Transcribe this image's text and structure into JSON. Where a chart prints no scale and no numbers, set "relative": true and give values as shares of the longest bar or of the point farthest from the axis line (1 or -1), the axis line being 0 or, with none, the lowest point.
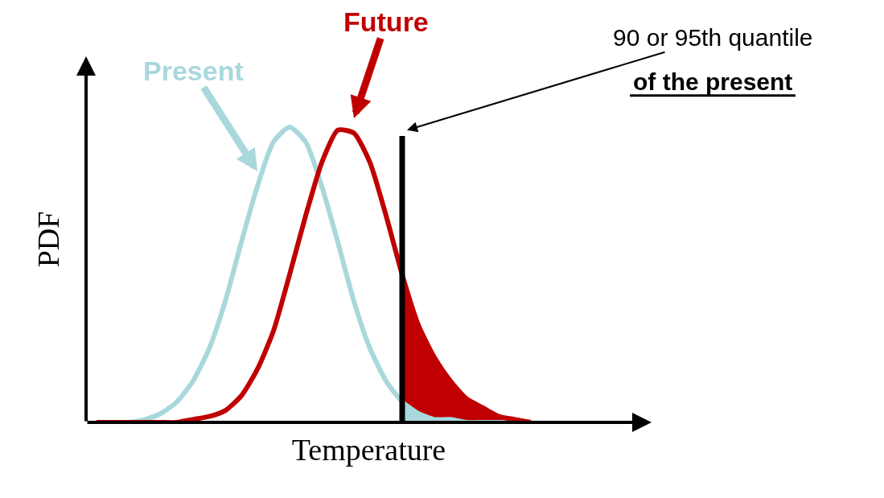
{
  "chart_data": {
    "type": "line",
    "relative": true,
    "xlabel": "Temperature",
    "ylabel": "PDF",
    "legend": false,
    "categories": [
      null,
      null,
      null,
      null,
      null,
      null,
      null,
      null,
      null,
      null,
      null,
      null,
      null,
      null,
      null,
      null,
      null,
      null,
      null,
      null,
      null,
      null,
      null,
      null,
      null,
      null,
      null,
      null,
      null,
      null,
      null
    ],
    "series": [
      {
        "type": "area",
        "color": "#c00000",
        "values": [
          null,
          null,
          null,
          null,
          null,
          null,
          null,
          null,
          null,
          null,
          null,
          null,
          null,
          null,
          null,
          null,
          null,
          null,
          null,
          0.5,
          0.33,
          0.22,
          0.14,
          0.08,
          0.05,
          0.02,
          0.01,
          0,
          null,
          null,
          null
        ]
      },
      {
        "type": "area",
        "color": "#a8d8dc",
        "values": [
          null,
          null,
          null,
          null,
          null,
          null,
          null,
          null,
          null,
          null,
          null,
          null,
          null,
          null,
          null,
          null,
          null,
          null,
          null,
          0.07,
          0.03,
          0.01,
          0.01,
          0,
          0,
          0,
          0,
          0,
          null,
          null,
          null
        ]
      },
      {
        "name": "Present",
        "color": "#a8d8dc",
        "values": [
          0,
          0,
          0,
          0.01,
          0.03,
          0.07,
          0.14,
          0.25,
          0.41,
          0.61,
          0.8,
          0.95,
          1,
          0.95,
          0.8,
          0.61,
          0.41,
          0.25,
          0.14,
          0.07,
          0.03,
          0.01,
          0.01,
          0,
          0,
          0,
          0,
          0,
          null,
          null,
          null
        ]
      },
      {
        "name": "Future",
        "color": "#c00000",
        "values": [
          0,
          0,
          0,
          0,
          0,
          0,
          0.01,
          0.02,
          0.04,
          0.09,
          0.18,
          0.31,
          0.5,
          0.7,
          0.88,
          0.99,
          0.98,
          0.88,
          0.7,
          0.5,
          0.33,
          0.22,
          0.14,
          0.08,
          0.05,
          0.02,
          0.01,
          0,
          null,
          null,
          null
        ]
      }
    ],
    "annotations": [
      "90 or 95th quantile",
      "of the present"
    ]
  }
}
